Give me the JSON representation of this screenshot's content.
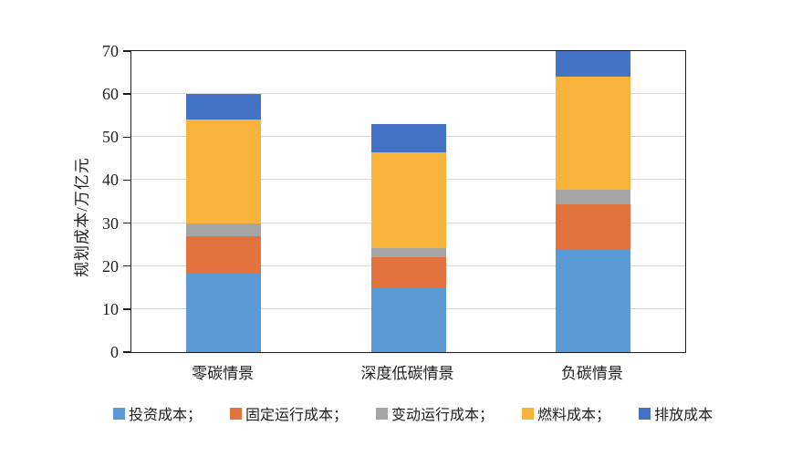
{
  "chart_data": {
    "type": "bar",
    "stacked": true,
    "title": "",
    "xlabel": "",
    "ylabel": "规划成本/万亿元",
    "categories": [
      "零碳情景",
      "深度低碳情景",
      "负碳情景"
    ],
    "series": [
      {
        "key": "investment-cost",
        "name": "投资成本",
        "legend_label": "投资成本；",
        "color": "#5B9BD5",
        "values": [
          18.5,
          14.8,
          24.0
        ]
      },
      {
        "key": "fixed-operating-cost",
        "name": "固定运行成本",
        "legend_label": "固定运行成本；",
        "color": "#E2733E",
        "values": [
          8.5,
          7.2,
          10.3
        ]
      },
      {
        "key": "variable-operating-cost",
        "name": "变动运行成本",
        "legend_label": "变动运行成本；",
        "color": "#A5A5A5",
        "values": [
          3.0,
          2.2,
          3.5
        ]
      },
      {
        "key": "fuel-cost",
        "name": "燃料成本",
        "legend_label": "燃料成本；",
        "color": "#F8B33B",
        "values": [
          24.0,
          22.3,
          26.2
        ]
      },
      {
        "key": "emission-cost",
        "name": "排放成本",
        "legend_label": "排放成本",
        "color": "#4472C4",
        "values": [
          6.0,
          6.5,
          6.0
        ]
      }
    ],
    "totals": [
      60,
      53,
      70
    ],
    "ylim": [
      0,
      70
    ],
    "yticks": [
      0,
      10,
      20,
      30,
      40,
      50,
      60,
      70
    ],
    "grid": true,
    "legend_position": "bottom",
    "axis_color": "#1c1c1c",
    "gridline_color": "#d9d9d9",
    "background_color": "#ffffff"
  }
}
